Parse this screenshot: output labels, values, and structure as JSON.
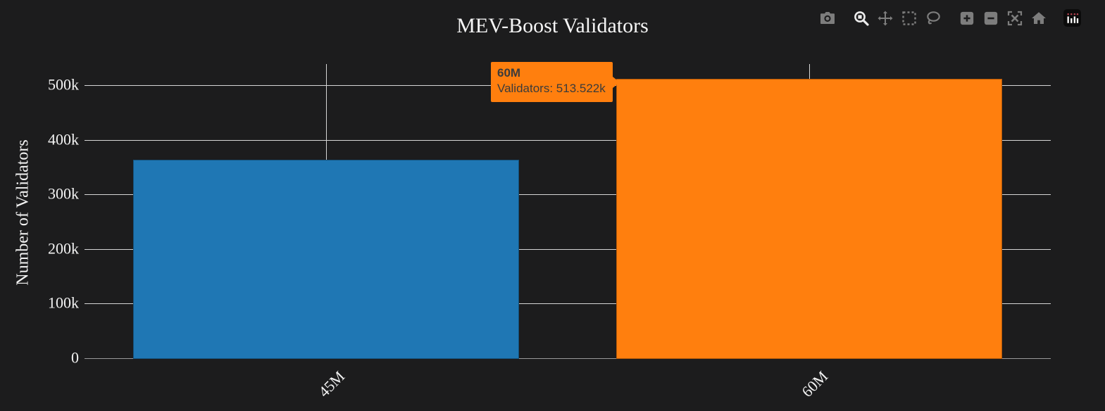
{
  "title": "MEV-Boost Validators",
  "modebar": {
    "active_tool": "zoom",
    "tools": [
      "download-plot-camera",
      "zoom",
      "pan",
      "box-select",
      "lasso-select",
      "zoom-in",
      "zoom-out",
      "autoscale",
      "reset-axes-home",
      "plotly-logo"
    ]
  },
  "tooltip": {
    "label": "60M",
    "text": "Validators: 513.522k",
    "bg": "#ff7f0e",
    "text_color": "#3b3b3b"
  },
  "chart_data": {
    "type": "bar",
    "title": "MEV-Boost Validators",
    "xlabel": "",
    "ylabel": "Number of Validators",
    "categories": [
      "45M",
      "60M"
    ],
    "values": [
      365000,
      513522
    ],
    "bar_colors": [
      "#1f77b4",
      "#ff7f0e"
    ],
    "ylim": [
      0,
      540000
    ],
    "yticks": [
      {
        "value": 0,
        "label": "0"
      },
      {
        "value": 100000,
        "label": "100k"
      },
      {
        "value": 200000,
        "label": "200k"
      },
      {
        "value": 300000,
        "label": "300k"
      },
      {
        "value": 400000,
        "label": "400k"
      },
      {
        "value": 500000,
        "label": "500k"
      }
    ],
    "grid": true,
    "legend": "none",
    "hovered_point": {
      "category": "60M",
      "value_text": "513.522k"
    }
  },
  "colors": {
    "background": "#1c1c1d",
    "gridline": "#d6d6d6",
    "zeroline": "#9a9a9a",
    "text": "#f3f3f3",
    "bar_blue": "#1f77b4",
    "bar_orange": "#ff7f0e",
    "modebar_icon": "#7d7d7d",
    "modebar_icon_active": "#ececec"
  }
}
